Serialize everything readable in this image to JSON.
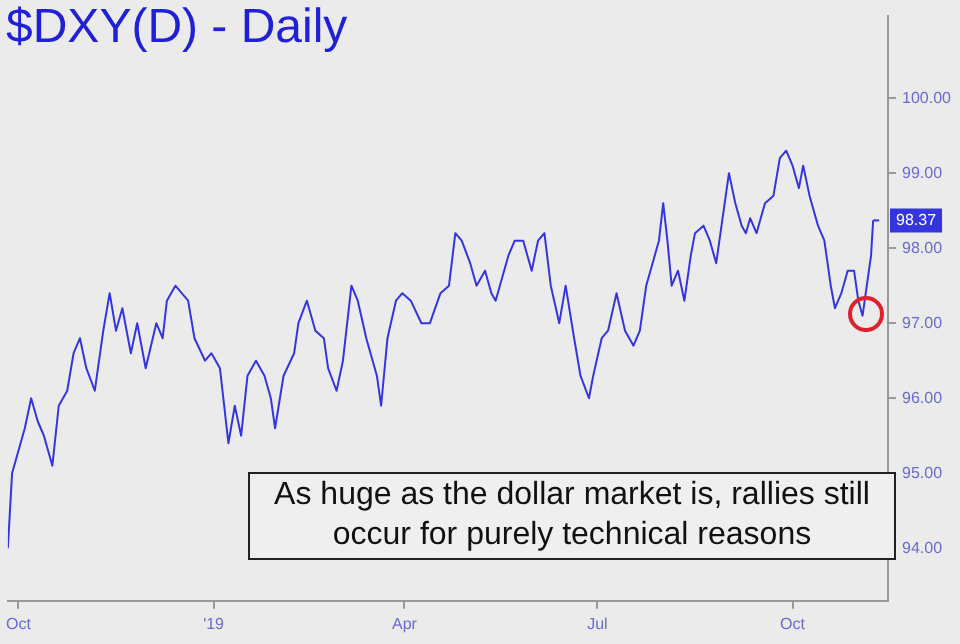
{
  "chart_data": {
    "type": "line",
    "title": "$DXY(D) - Daily",
    "annotations": [
      "As huge as the dollar market is, rallies still occur for purely technical reasons",
      {
        "text": "98.37",
        "x": "2019-11-08",
        "y": 98.37
      }
    ],
    "x": [
      "2018-09-26",
      "2018-09-28",
      "2018-10-04",
      "2018-10-07",
      "2018-10-10",
      "2018-10-13",
      "2018-10-17",
      "2018-10-20",
      "2018-10-24",
      "2018-10-27",
      "2018-10-30",
      "2018-11-02",
      "2018-11-06",
      "2018-11-10",
      "2018-11-13",
      "2018-11-16",
      "2018-11-19",
      "2018-11-23",
      "2018-11-26",
      "2018-11-30",
      "2018-12-05",
      "2018-12-08",
      "2018-12-10",
      "2018-12-14",
      "2018-12-17",
      "2018-12-20",
      "2018-12-23",
      "2018-12-28",
      "2018-12-31",
      "2019-01-04",
      "2019-01-08",
      "2019-01-11",
      "2019-01-14",
      "2019-01-17",
      "2019-01-21",
      "2019-01-25",
      "2019-01-28",
      "2019-01-30",
      "2019-02-03",
      "2019-02-08",
      "2019-02-10",
      "2019-02-14",
      "2019-02-18",
      "2019-02-22",
      "2019-02-24",
      "2019-02-28",
      "2019-03-03",
      "2019-03-07",
      "2019-03-10",
      "2019-03-14",
      "2019-03-17",
      "2019-03-19",
      "2019-03-21",
      "2019-03-24",
      "2019-03-28",
      "2019-03-31",
      "2019-04-04",
      "2019-04-09",
      "2019-04-13",
      "2019-04-18",
      "2019-04-22",
      "2019-04-25",
      "2019-04-28",
      "2019-05-02",
      "2019-05-05",
      "2019-05-09",
      "2019-05-12",
      "2019-05-14",
      "2019-05-16",
      "2019-05-20",
      "2019-05-23",
      "2019-05-27",
      "2019-05-29",
      "2019-05-31",
      "2019-06-03",
      "2019-06-06",
      "2019-06-09",
      "2019-06-13",
      "2019-06-16",
      "2019-06-20",
      "2019-06-23",
      "2019-06-27",
      "2019-06-29",
      "2019-07-03",
      "2019-07-06",
      "2019-07-10",
      "2019-07-14",
      "2019-07-18",
      "2019-07-21",
      "2019-07-24",
      "2019-07-27",
      "2019-07-30",
      "2019-08-01",
      "2019-08-03",
      "2019-08-05",
      "2019-08-08",
      "2019-08-11",
      "2019-08-14",
      "2019-08-16",
      "2019-08-20",
      "2019-08-23",
      "2019-08-26",
      "2019-08-29",
      "2019-09-01",
      "2019-09-04",
      "2019-09-07",
      "2019-09-09",
      "2019-09-11",
      "2019-09-14",
      "2019-09-18",
      "2019-09-22",
      "2019-09-25",
      "2019-09-28",
      "2019-10-01",
      "2019-10-04",
      "2019-10-06",
      "2019-10-09",
      "2019-10-13",
      "2019-10-16",
      "2019-10-19",
      "2019-10-21",
      "2019-10-24",
      "2019-10-27",
      "2019-10-30",
      "2019-11-01",
      "2019-11-03",
      "2019-11-06",
      "2019-11-07",
      "2019-11-08"
    ],
    "series": [
      {
        "color": "#3535e0",
        "values": [
          94.0,
          95.0,
          95.6,
          96.0,
          95.7,
          95.5,
          95.1,
          95.9,
          96.1,
          96.6,
          96.8,
          96.4,
          96.1,
          96.9,
          97.4,
          96.9,
          97.2,
          96.6,
          97.0,
          96.4,
          97.0,
          96.8,
          97.3,
          97.5,
          97.4,
          97.3,
          96.8,
          96.5,
          96.6,
          96.4,
          95.4,
          95.9,
          95.5,
          96.3,
          96.5,
          96.3,
          96.0,
          95.6,
          96.3,
          96.6,
          97.0,
          97.3,
          96.9,
          96.8,
          96.4,
          96.1,
          96.5,
          97.5,
          97.3,
          96.8,
          96.5,
          96.3,
          95.9,
          96.8,
          97.3,
          97.4,
          97.3,
          97.0,
          97.0,
          97.4,
          97.5,
          98.2,
          98.1,
          97.8,
          97.5,
          97.7,
          97.4,
          97.3,
          97.5,
          97.9,
          98.1,
          98.1,
          97.9,
          97.7,
          98.1,
          98.2,
          97.5,
          97.0,
          97.5,
          96.8,
          96.3,
          96.0,
          96.3,
          96.8,
          96.9,
          97.4,
          96.9,
          96.7,
          96.9,
          97.5,
          97.8,
          98.1,
          98.6,
          98.1,
          97.5,
          97.7,
          97.3,
          97.9,
          98.2,
          98.3,
          98.1,
          97.8,
          98.4,
          99.0,
          98.6,
          98.3,
          98.2,
          98.4,
          98.2,
          98.6,
          98.7,
          99.2,
          99.3,
          99.1,
          98.8,
          99.1,
          98.7,
          98.3,
          98.1,
          97.5,
          97.2,
          97.4,
          97.7,
          97.7,
          97.3,
          97.1,
          97.7,
          97.9,
          98.37
        ]
      }
    ],
    "xlim": [
      "2018-09-26",
      "2019-11-15"
    ],
    "xticks": [
      {
        "value": "2018-10-01",
        "label": "Oct"
      },
      {
        "value": "2019-01-01",
        "label": "'19"
      },
      {
        "value": "2019-04-01",
        "label": "Apr"
      },
      {
        "value": "2019-07-01",
        "label": "Jul"
      },
      {
        "value": "2019-10-01",
        "label": "Oct"
      }
    ],
    "ylim": [
      93.3,
      101.1
    ],
    "yticks": [
      {
        "value": 94,
        "label": "94.00"
      },
      {
        "value": 95,
        "label": "95.00"
      },
      {
        "value": 96,
        "label": "96.00"
      },
      {
        "value": 97,
        "label": "97.00"
      },
      {
        "value": 98,
        "label": "98.00"
      },
      {
        "value": 99,
        "label": "99.00"
      },
      {
        "value": 100,
        "label": "100.00"
      }
    ],
    "marker": "none",
    "line_style": "solid"
  }
}
